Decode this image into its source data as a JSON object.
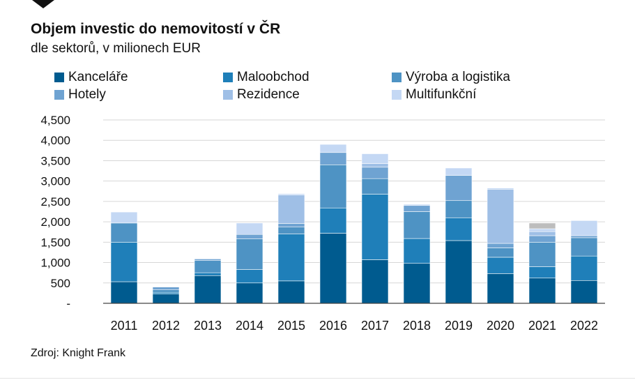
{
  "title": "Objem investic do nemovitostí v ČR",
  "subtitle": "dle sektorů, v milionech EUR",
  "source": "Zdroj: Knight Frank",
  "chart_data": {
    "type": "bar",
    "stacked": true,
    "title": "Objem investic do nemovitostí v ČR",
    "subtitle": "dle sektorů, v milionech EUR",
    "categories": [
      "2011",
      "2012",
      "2013",
      "2014",
      "2015",
      "2016",
      "2017",
      "2018",
      "2019",
      "2020",
      "2021",
      "2022"
    ],
    "ylim": [
      0,
      4500
    ],
    "yticks": [
      0,
      500,
      1000,
      1500,
      2000,
      2500,
      3000,
      3500,
      4000,
      4500
    ],
    "ytick_labels": [
      "-",
      "500",
      "1,000",
      "1,500",
      "2,000",
      "2,500",
      "3,000",
      "3,500",
      "4,000",
      "4,500"
    ],
    "grid": true,
    "legend_position": "top",
    "series": [
      {
        "name": "Kanceláře",
        "color": "#005b8f",
        "values": [
          530,
          230,
          680,
          500,
          550,
          1720,
          1070,
          980,
          1540,
          730,
          620,
          560
        ]
      },
      {
        "name": "Maloobchod",
        "color": "#1f7fb9",
        "values": [
          970,
          40,
          70,
          330,
          1150,
          620,
          1610,
          610,
          560,
          400,
          280,
          600
        ]
      },
      {
        "name": "Výroba a logistika",
        "color": "#4e93c4",
        "values": [
          470,
          60,
          300,
          750,
          170,
          1060,
          380,
          660,
          420,
          230,
          600,
          450
        ]
      },
      {
        "name": "Hotely",
        "color": "#6fa3d2",
        "values": [
          0,
          70,
          40,
          110,
          90,
          300,
          280,
          150,
          620,
          110,
          160,
          50
        ]
      },
      {
        "name": "Rezidence",
        "color": "#9fbfe6",
        "values": [
          0,
          10,
          10,
          0,
          700,
          0,
          90,
          0,
          0,
          1330,
          100,
          0
        ]
      },
      {
        "name": "Multifunkční",
        "color": "#c4d8f4",
        "values": [
          270,
          0,
          0,
          280,
          30,
          200,
          240,
          30,
          180,
          30,
          70,
          370
        ]
      },
      {
        "name": "",
        "color": "#bdbdbd",
        "values": [
          0,
          0,
          0,
          0,
          0,
          0,
          0,
          0,
          0,
          0,
          140,
          0
        ]
      }
    ]
  }
}
